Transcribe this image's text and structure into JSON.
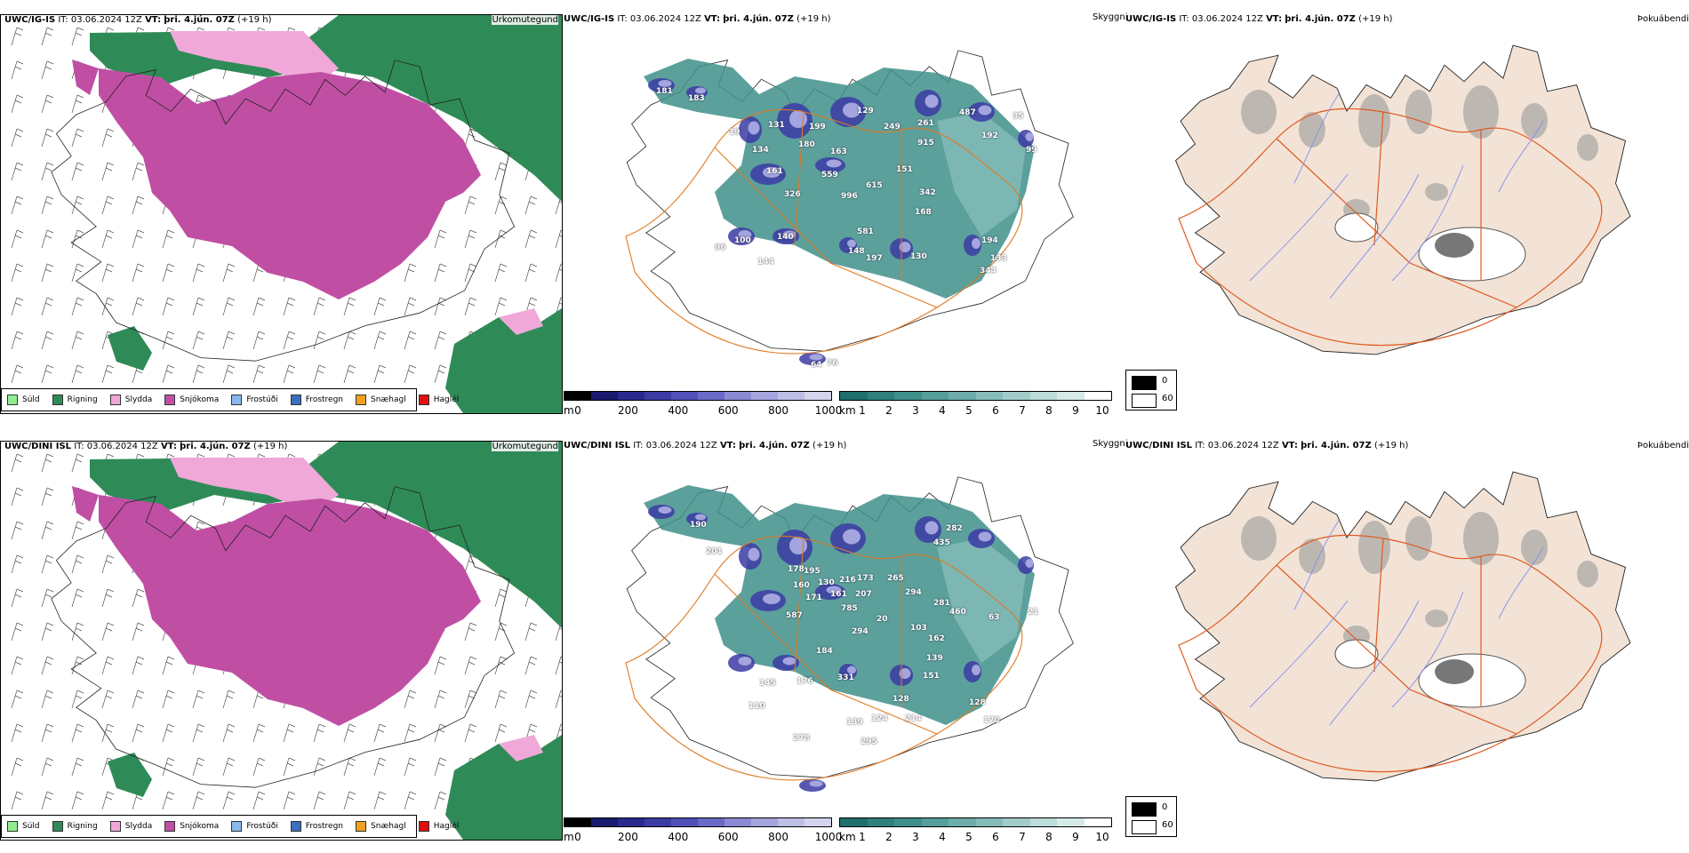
{
  "rows": [
    {
      "model": "UWC/IG-IS",
      "it_label": "IT:",
      "it_value": "03.06.2024 12Z",
      "vt_label": "VT:",
      "vt_value": "þri. 4.jún. 07Z",
      "lead": "(+19 h)",
      "precip_title": "Úrkomutegund",
      "cloud_title": "Skyggni",
      "fog_title": "Þokuábendi",
      "labels": [
        "181",
        "183",
        "19",
        "131",
        "199",
        "129",
        "249",
        "261",
        "487",
        "192",
        "35",
        "99",
        "134",
        "180",
        "163",
        "161",
        "915",
        "559",
        "151",
        "326",
        "996",
        "615",
        "342",
        "168",
        "581",
        "194",
        "100",
        "140",
        "148",
        "130",
        "96",
        "144",
        "197",
        "133",
        "344",
        "64",
        "76"
      ]
    },
    {
      "model": "UWC/DINI ISL",
      "it_label": "IT:",
      "it_value": "03.06.2024 12Z",
      "vt_label": "VT:",
      "vt_value": "þri. 4.jún. 07Z",
      "lead": "(+19 h)",
      "precip_title": "Úrkomutegund",
      "cloud_title": "Skyggni",
      "fog_title": "Þokuábendi",
      "labels": [
        "190",
        "201",
        "282",
        "435",
        "178",
        "195",
        "130",
        "216",
        "173",
        "265",
        "294",
        "160",
        "161",
        "207",
        "281",
        "460",
        "63",
        "21",
        "171",
        "785",
        "20",
        "103",
        "162",
        "587",
        "294",
        "184",
        "139",
        "151",
        "145",
        "176",
        "331",
        "128",
        "110",
        "139",
        "124",
        "214",
        "128",
        "170",
        "278",
        "295"
      ]
    }
  ],
  "precip_legend": [
    {
      "label": "Súld",
      "color": "#90ee90"
    },
    {
      "label": "Rigning",
      "color": "#2e8b57"
    },
    {
      "label": "Slydda",
      "color": "#f0a8d8"
    },
    {
      "label": "Snjókoma",
      "color": "#c04fa4"
    },
    {
      "label": "Frostúði",
      "color": "#87b8ee"
    },
    {
      "label": "Frostregn",
      "color": "#3a6fc0"
    },
    {
      "label": "Snæhagl",
      "color": "#f0a020"
    },
    {
      "label": "Haglél",
      "color": "#e01010"
    }
  ],
  "ceiling_scale": {
    "unit": "m",
    "ticks": [
      "0",
      "200",
      "400",
      "600",
      "800",
      "1000"
    ],
    "colors": [
      "#000000",
      "#1a1a6e",
      "#2a2a8e",
      "#3b3ba4",
      "#5050b8",
      "#6a6ac6",
      "#8a8ad4",
      "#a4a4de",
      "#bdbde6",
      "#d4d4ee"
    ]
  },
  "visibility_scale": {
    "unit": "km",
    "ticks": [
      "1",
      "2",
      "3",
      "4",
      "5",
      "6",
      "7",
      "8",
      "9",
      "10"
    ],
    "colors": [
      "#1f6f6c",
      "#2f807c",
      "#3f8f8b",
      "#559e9a",
      "#6cadaa",
      "#86bdba",
      "#a1ccc9",
      "#bcdcd9",
      "#d6eae8",
      "#ffffff"
    ]
  },
  "fog_scale": {
    "values": [
      "0",
      "60"
    ]
  }
}
